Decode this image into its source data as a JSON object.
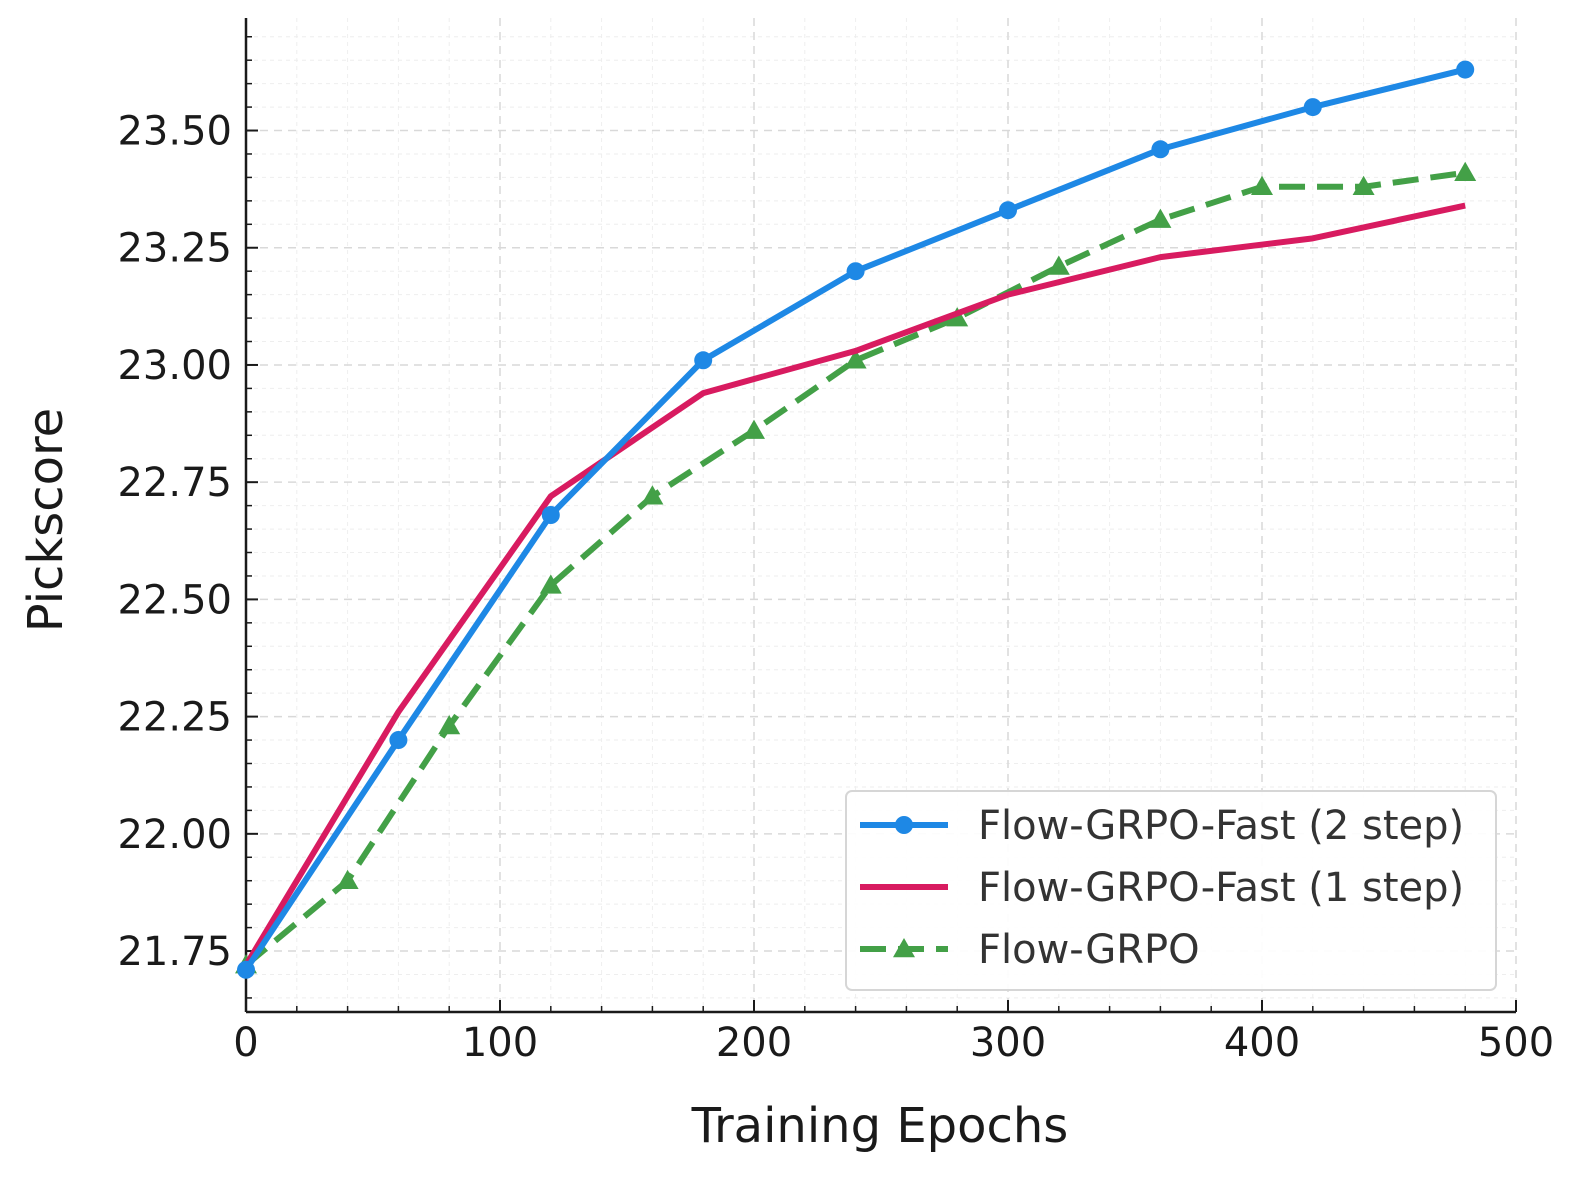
{
  "chart_data": {
    "type": "line",
    "title": "",
    "xlabel": "Training Epochs",
    "ylabel": "Pickscore",
    "xlim": [
      0,
      500
    ],
    "ylim": [
      21.62,
      23.74
    ],
    "xticks": [
      0,
      100,
      200,
      300,
      400,
      500
    ],
    "xtick_labels": [
      "0",
      "100",
      "200",
      "300",
      "400",
      "500"
    ],
    "yticks": [
      21.75,
      22.0,
      22.25,
      22.5,
      22.75,
      23.0,
      23.25,
      23.5
    ],
    "ytick_labels": [
      "21.75",
      "22.00",
      "22.25",
      "22.50",
      "22.75",
      "23.00",
      "23.25",
      "23.50"
    ],
    "grid": true,
    "legend_position": "lower-right",
    "series": [
      {
        "name": "Flow-GRPO-Fast (2 step)",
        "color": "#1e88e5",
        "style": "solid",
        "marker": "circle",
        "x": [
          0,
          60,
          120,
          180,
          240,
          300,
          360,
          420,
          480
        ],
        "y": [
          21.71,
          22.2,
          22.68,
          23.01,
          23.2,
          23.33,
          23.46,
          23.55,
          23.63
        ]
      },
      {
        "name": "Flow-GRPO-Fast (1 step)",
        "color": "#d81b60",
        "style": "solid",
        "marker": "none",
        "x": [
          0,
          60,
          120,
          180,
          240,
          300,
          360,
          420,
          480
        ],
        "y": [
          21.72,
          22.26,
          22.72,
          22.94,
          23.03,
          23.15,
          23.23,
          23.27,
          23.34
        ]
      },
      {
        "name": "Flow-GRPO",
        "color": "#43a047",
        "style": "dashed",
        "marker": "triangle",
        "x": [
          0,
          40,
          80,
          120,
          160,
          200,
          240,
          280,
          320,
          360,
          400,
          440,
          480
        ],
        "y": [
          21.72,
          21.9,
          22.23,
          22.53,
          22.72,
          22.86,
          23.01,
          23.1,
          23.21,
          23.31,
          23.38,
          23.38,
          23.41
        ]
      }
    ]
  }
}
